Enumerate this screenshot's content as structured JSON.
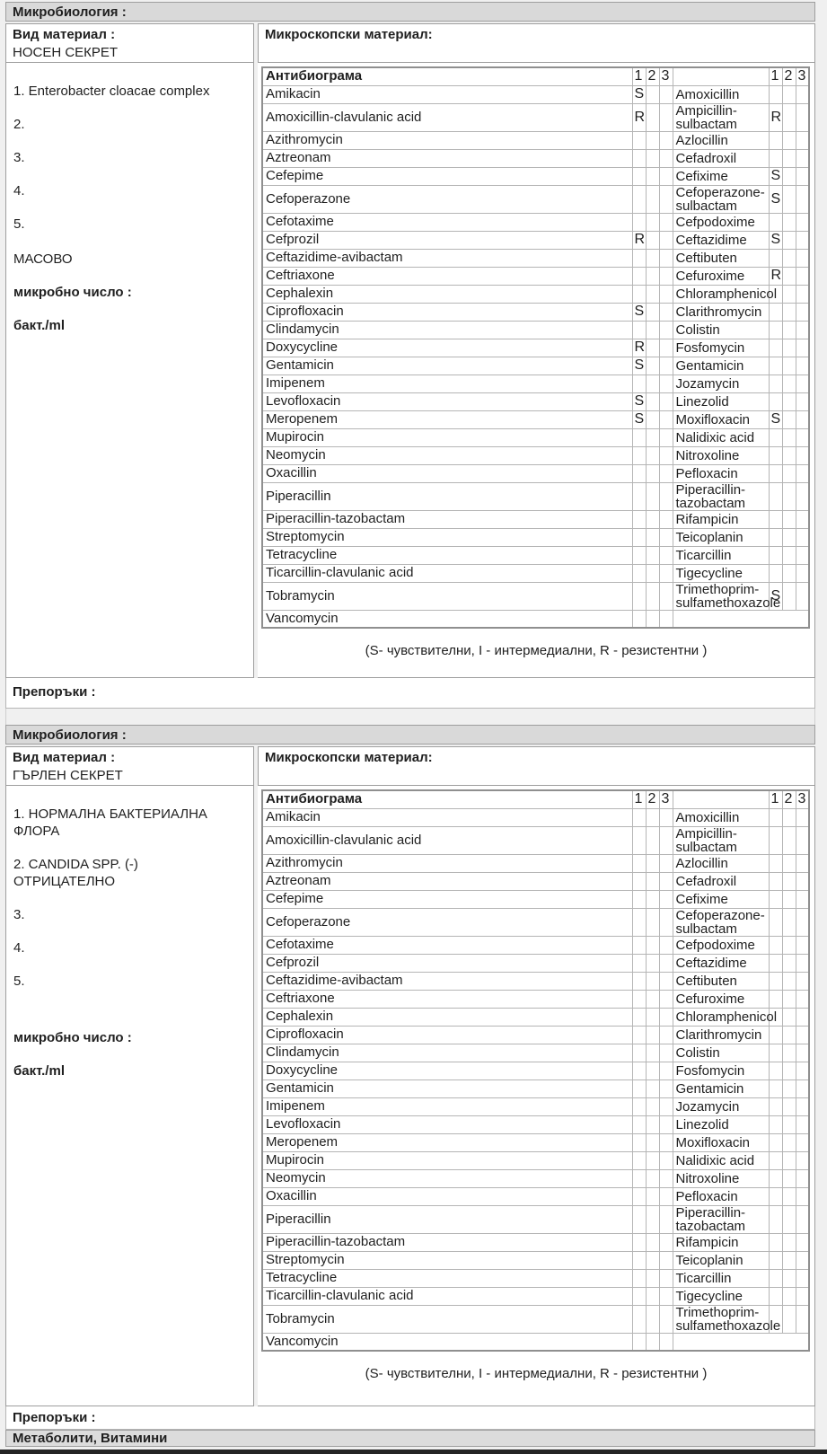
{
  "colors": {
    "bar_bg": "#d9d9d9",
    "border": "#9e9e9e",
    "table_line": "#b5b5b5",
    "text": "#1f1f1f",
    "bottom_strip": "#242424"
  },
  "footer_bar": "Метаболити, Витамини",
  "sections": [
    {
      "title": "Микробиология :",
      "material_label": "Вид материал :",
      "material_value": "НОСЕН СЕКРЕТ",
      "microscopy_label": "Микроскопски материал:",
      "organisms": [
        "1. Enterobacter cloacae complex",
        "2.",
        "3.",
        "4.",
        "5."
      ],
      "growth": "МАСОВО",
      "count_label": "микробно число :",
      "count_unit": "бакт./ml",
      "legend": "(S- чувствителни, I - интермедиални, R - резистентни )",
      "recommendations_label": "Препоръки :",
      "antibiogram": {
        "header": "Антибиограма",
        "cols": [
          "1",
          "2",
          "3"
        ],
        "rows": [
          {
            "l": "Amikacin",
            "lv": "S",
            "r": "Amoxicillin",
            "rv": ""
          },
          {
            "l": "Amoxicillin-clavulanic acid",
            "lv": "R",
            "r": "Ampicillin-sulbactam",
            "rv": "R"
          },
          {
            "l": "Azithromycin",
            "lv": "",
            "r": "Azlocillin",
            "rv": ""
          },
          {
            "l": "Aztreonam",
            "lv": "",
            "r": "Cefadroxil",
            "rv": ""
          },
          {
            "l": "Cefepime",
            "lv": "",
            "r": "Cefixime",
            "rv": "S"
          },
          {
            "l": "Cefoperazone",
            "lv": "",
            "r": "Cefoperazone-sulbactam",
            "rv": "S"
          },
          {
            "l": "Cefotaxime",
            "lv": "",
            "r": "Cefpodoxime",
            "rv": ""
          },
          {
            "l": "Cefprozil",
            "lv": "R",
            "r": "Ceftazidime",
            "rv": "S"
          },
          {
            "l": "Ceftazidime-avibactam",
            "lv": "",
            "r": "Ceftibuten",
            "rv": ""
          },
          {
            "l": "Ceftriaxone",
            "lv": "",
            "r": "Cefuroxime",
            "rv": "R"
          },
          {
            "l": "Cephalexin",
            "lv": "",
            "r": "Chloramphenicol",
            "rv": ""
          },
          {
            "l": "Ciprofloxacin",
            "lv": "S",
            "r": "Clarithromycin",
            "rv": ""
          },
          {
            "l": "Clindamycin",
            "lv": "",
            "r": "Colistin",
            "rv": ""
          },
          {
            "l": "Doxycycline",
            "lv": "R",
            "r": "Fosfomycin",
            "rv": ""
          },
          {
            "l": "Gentamicin",
            "lv": "S",
            "r": "Gentamicin",
            "rv": ""
          },
          {
            "l": "Imipenem",
            "lv": "",
            "r": "Jozamycin",
            "rv": ""
          },
          {
            "l": "Levofloxacin",
            "lv": "S",
            "r": "Linezolid",
            "rv": ""
          },
          {
            "l": "Meropenem",
            "lv": "S",
            "r": "Moxifloxacin",
            "rv": "S"
          },
          {
            "l": "Mupirocin",
            "lv": "",
            "r": "Nalidixic acid",
            "rv": ""
          },
          {
            "l": "Neomycin",
            "lv": "",
            "r": "Nitroxoline",
            "rv": ""
          },
          {
            "l": "Oxacillin",
            "lv": "",
            "r": "Pefloxacin",
            "rv": ""
          },
          {
            "l": "Piperacillin",
            "lv": "",
            "r": "Piperacillin-tazobactam",
            "rv": ""
          },
          {
            "l": "Piperacillin-tazobactam",
            "lv": "",
            "r": "Rifampicin",
            "rv": ""
          },
          {
            "l": "Streptomycin",
            "lv": "",
            "r": "Teicoplanin",
            "rv": ""
          },
          {
            "l": "Tetracycline",
            "lv": "",
            "r": "Ticarcillin",
            "rv": ""
          },
          {
            "l": "Ticarcillin-clavulanic acid",
            "lv": "",
            "r": "Tigecycline",
            "rv": ""
          },
          {
            "l": "Tobramycin",
            "lv": "",
            "r": "Trimethoprim-sulfamethoxazole",
            "rv": "S"
          },
          {
            "l": "Vancomycin",
            "lv": "",
            "r": null,
            "rv": null
          }
        ]
      }
    },
    {
      "title": "Микробиология :",
      "material_label": "Вид материал :",
      "material_value": "ГЪРЛЕН СЕКРЕТ",
      "microscopy_label": "Микроскопски материал:",
      "organisms": [
        "1. НОРМАЛНА БАКТЕРИАЛНА ФЛОРА",
        "2. CANDIDA SPP. (-) ОТРИЦАТЕЛНО",
        "3.",
        "4.",
        "5."
      ],
      "count_label": "микробно число :",
      "count_unit": "бакт./ml",
      "legend": "(S- чувствителни, I - интермедиални, R - резистентни )",
      "recommendations_label": "Препоръки :",
      "antibiogram": {
        "header": "Антибиограма",
        "cols": [
          "1",
          "2",
          "3"
        ],
        "rows": [
          {
            "l": "Amikacin",
            "lv": "",
            "r": "Amoxicillin",
            "rv": ""
          },
          {
            "l": "Amoxicillin-clavulanic acid",
            "lv": "",
            "r": "Ampicillin-sulbactam",
            "rv": ""
          },
          {
            "l": "Azithromycin",
            "lv": "",
            "r": "Azlocillin",
            "rv": ""
          },
          {
            "l": "Aztreonam",
            "lv": "",
            "r": "Cefadroxil",
            "rv": ""
          },
          {
            "l": "Cefepime",
            "lv": "",
            "r": "Cefixime",
            "rv": ""
          },
          {
            "l": "Cefoperazone",
            "lv": "",
            "r": "Cefoperazone-sulbactam",
            "rv": ""
          },
          {
            "l": "Cefotaxime",
            "lv": "",
            "r": "Cefpodoxime",
            "rv": ""
          },
          {
            "l": "Cefprozil",
            "lv": "",
            "r": "Ceftazidime",
            "rv": ""
          },
          {
            "l": "Ceftazidime-avibactam",
            "lv": "",
            "r": "Ceftibuten",
            "rv": ""
          },
          {
            "l": "Ceftriaxone",
            "lv": "",
            "r": "Cefuroxime",
            "rv": ""
          },
          {
            "l": "Cephalexin",
            "lv": "",
            "r": "Chloramphenicol",
            "rv": ""
          },
          {
            "l": "Ciprofloxacin",
            "lv": "",
            "r": "Clarithromycin",
            "rv": ""
          },
          {
            "l": "Clindamycin",
            "lv": "",
            "r": "Colistin",
            "rv": ""
          },
          {
            "l": "Doxycycline",
            "lv": "",
            "r": "Fosfomycin",
            "rv": ""
          },
          {
            "l": "Gentamicin",
            "lv": "",
            "r": "Gentamicin",
            "rv": ""
          },
          {
            "l": "Imipenem",
            "lv": "",
            "r": "Jozamycin",
            "rv": ""
          },
          {
            "l": "Levofloxacin",
            "lv": "",
            "r": "Linezolid",
            "rv": ""
          },
          {
            "l": "Meropenem",
            "lv": "",
            "r": "Moxifloxacin",
            "rv": ""
          },
          {
            "l": "Mupirocin",
            "lv": "",
            "r": "Nalidixic acid",
            "rv": ""
          },
          {
            "l": "Neomycin",
            "lv": "",
            "r": "Nitroxoline",
            "rv": ""
          },
          {
            "l": "Oxacillin",
            "lv": "",
            "r": "Pefloxacin",
            "rv": ""
          },
          {
            "l": "Piperacillin",
            "lv": "",
            "r": "Piperacillin-tazobactam",
            "rv": ""
          },
          {
            "l": "Piperacillin-tazobactam",
            "lv": "",
            "r": "Rifampicin",
            "rv": ""
          },
          {
            "l": "Streptomycin",
            "lv": "",
            "r": "Teicoplanin",
            "rv": ""
          },
          {
            "l": "Tetracycline",
            "lv": "",
            "r": "Ticarcillin",
            "rv": ""
          },
          {
            "l": "Ticarcillin-clavulanic acid",
            "lv": "",
            "r": "Tigecycline",
            "rv": ""
          },
          {
            "l": "Tobramycin",
            "lv": "",
            "r": "Trimethoprim-sulfamethoxazole",
            "rv": ""
          },
          {
            "l": "Vancomycin",
            "lv": "",
            "r": null,
            "rv": null
          }
        ]
      }
    }
  ]
}
